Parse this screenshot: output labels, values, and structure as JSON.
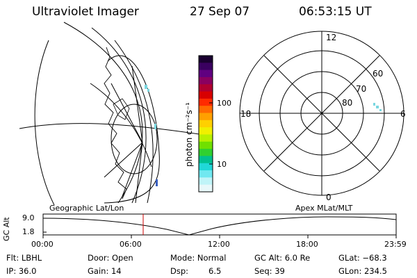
{
  "header": {
    "title": "Ultraviolet Imager",
    "date": "27 Sep 07",
    "time": "06:53:15 UT"
  },
  "colorbar": {
    "unit_label": "photon cm⁻²s⁻¹",
    "ticks": [
      "100",
      "10"
    ],
    "colors": [
      "#1a0030",
      "#3a0060",
      "#600080",
      "#8a0060",
      "#b00030",
      "#d80000",
      "#ff2a00",
      "#ff6a00",
      "#ffa000",
      "#ffd000",
      "#f0f000",
      "#b8f000",
      "#70e000",
      "#30d030",
      "#00c090",
      "#20d8d8",
      "#70e8f0",
      "#c0f4f8",
      "#e8f8fa"
    ]
  },
  "left_map": {
    "label": "Geographic Lat/Lon"
  },
  "polar_plot": {
    "label": "Apex MLat/MLT",
    "mlt_labels": {
      "top": "12",
      "bottom": "0",
      "left": "18",
      "right": "6"
    },
    "lat_labels": [
      "60",
      "70",
      "80"
    ]
  },
  "altitude_plot": {
    "ylabel": "GC Alt",
    "y_ticks": [
      "9.0",
      "1.8"
    ],
    "x_ticks": [
      "00:00",
      "06:00",
      "12:00",
      "18:00",
      "23:59"
    ],
    "cursor_color": "#cc0000"
  },
  "footer": {
    "filter": "Flt: LBHL",
    "ip": "IP: 36.0",
    "door": "Door: Open",
    "gain": "Gain: 14",
    "mode": "Mode: Normal",
    "dsp": "Dsp:",
    "dsp_value": "6.5",
    "gc_alt": "GC Alt: 6.0 Re",
    "seq": "Seq: 39",
    "glat": "GLat: −68.3",
    "glon": "GLon: 234.5"
  }
}
